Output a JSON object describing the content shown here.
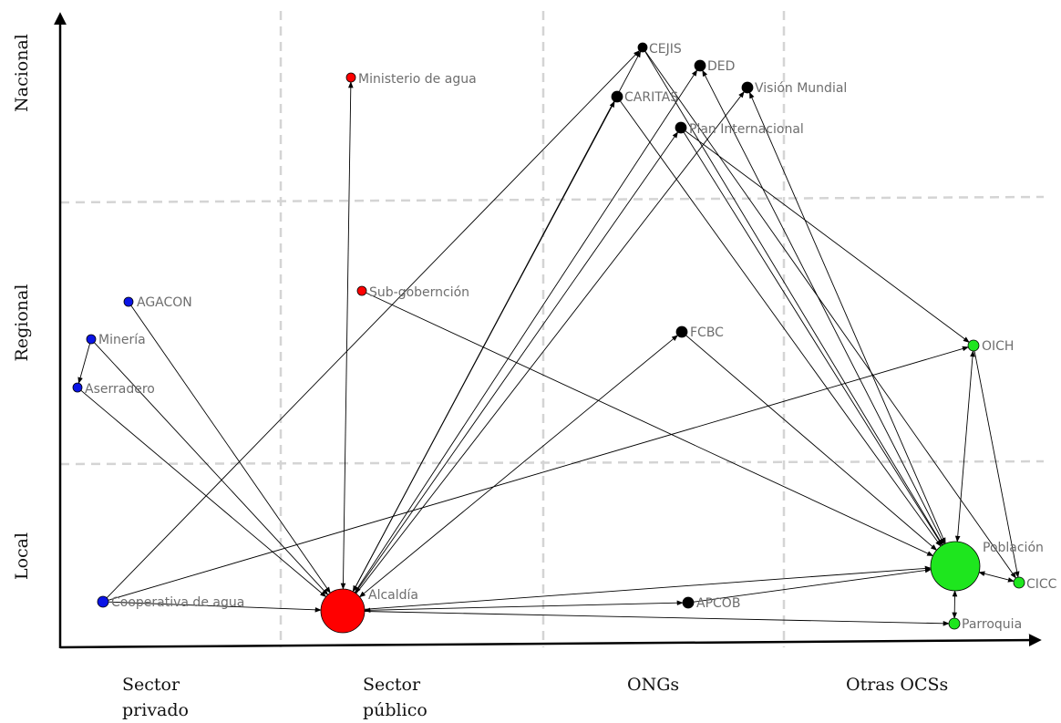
{
  "axes": {
    "y_labels": [
      "Nacional",
      "Regional",
      "Local"
    ],
    "x_labels": [
      [
        "Sector",
        "privado"
      ],
      [
        "Sector",
        "público"
      ],
      [
        "ONGs"
      ],
      [
        "Otras OCSs"
      ]
    ]
  },
  "colors": {
    "private": "#0a14e6",
    "public": "#ff0000",
    "ngo": "#000000",
    "other": "#1ee61e"
  },
  "nodes": {
    "agacon": {
      "label": "AGACON",
      "group": "private"
    },
    "mineria": {
      "label": "Minería",
      "group": "private"
    },
    "aserradero": {
      "label": "Aserradero",
      "group": "private"
    },
    "cooperativa": {
      "label": "Cooperativa de agua",
      "group": "private"
    },
    "ministerio": {
      "label": "Ministerio de agua",
      "group": "public"
    },
    "subgob": {
      "label": "Sub-gobernción",
      "group": "public"
    },
    "alcaldia": {
      "label": "Alcaldía",
      "group": "public"
    },
    "cejis": {
      "label": "CEJIS",
      "group": "ngo"
    },
    "ded": {
      "label": "DED",
      "group": "ngo"
    },
    "caritas": {
      "label": "CARITAS",
      "group": "ngo"
    },
    "vision": {
      "label": "Visión Mundial",
      "group": "ngo"
    },
    "plan": {
      "label": "Plan Internacional",
      "group": "ngo"
    },
    "fcbc": {
      "label": "FCBC",
      "group": "ngo"
    },
    "apcob": {
      "label": "APCOB",
      "group": "ngo"
    },
    "oich": {
      "label": "OICH",
      "group": "other"
    },
    "poblacion": {
      "label": "Población",
      "group": "other"
    },
    "cicc": {
      "label": "CICC",
      "group": "other"
    },
    "parroquia": {
      "label": "Parroquia",
      "group": "other"
    }
  },
  "edges": [
    [
      "cejis",
      "alcaldia",
      "both"
    ],
    [
      "cejis",
      "poblacion",
      "to"
    ],
    [
      "cejis",
      "cooperativa",
      "from"
    ],
    [
      "ded",
      "poblacion",
      "both"
    ],
    [
      "ded",
      "alcaldia",
      "from"
    ],
    [
      "caritas",
      "alcaldia",
      "both"
    ],
    [
      "caritas",
      "poblacion",
      "to"
    ],
    [
      "vision",
      "poblacion",
      "both"
    ],
    [
      "vision",
      "alcaldia",
      "from"
    ],
    [
      "plan",
      "alcaldia",
      "both"
    ],
    [
      "plan",
      "poblacion",
      "to"
    ],
    [
      "plan",
      "oich",
      "to"
    ],
    [
      "ministerio",
      "alcaldia",
      "both"
    ],
    [
      "subgob",
      "poblacion",
      "to"
    ],
    [
      "fcbc",
      "alcaldia",
      "both"
    ],
    [
      "fcbc",
      "poblacion",
      "to"
    ],
    [
      "agacon",
      "alcaldia",
      "to"
    ],
    [
      "mineria",
      "aserradero",
      "to"
    ],
    [
      "mineria",
      "alcaldia",
      "to"
    ],
    [
      "aserradero",
      "alcaldia",
      "to"
    ],
    [
      "cooperativa",
      "alcaldia",
      "to"
    ],
    [
      "cooperativa",
      "oich",
      "to"
    ],
    [
      "alcaldia",
      "poblacion",
      "to"
    ],
    [
      "alcaldia",
      "apcob",
      "both"
    ],
    [
      "alcaldia",
      "parroquia",
      "to"
    ],
    [
      "apcob",
      "poblacion",
      "to"
    ],
    [
      "oich",
      "poblacion",
      "both"
    ],
    [
      "oich",
      "cicc",
      "to"
    ],
    [
      "poblacion",
      "cicc",
      "both"
    ],
    [
      "poblacion",
      "parroquia",
      "both"
    ],
    [
      "cicc",
      "cejis",
      "from"
    ]
  ]
}
